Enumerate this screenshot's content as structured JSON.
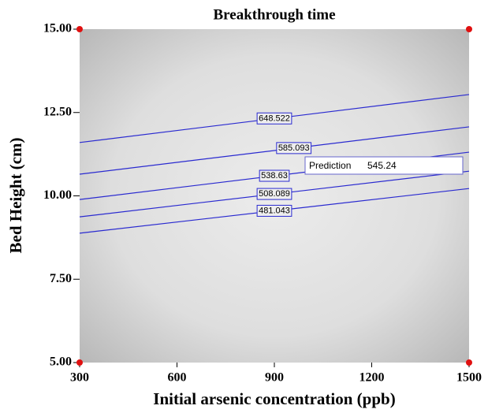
{
  "chart_data": {
    "type": "contour",
    "title": "Breakthrough time",
    "x_label": "Initial arsenic concentration (ppb)",
    "y_label": "Bed Height (cm)",
    "xlim": [
      300,
      1500
    ],
    "xticks": [
      300,
      600,
      900,
      1200,
      1500
    ],
    "ylim": [
      5,
      15
    ],
    "yticks": [
      {
        "value": 5,
        "label": "5.00"
      },
      {
        "value": 7.5,
        "label": "7.50"
      },
      {
        "value": 10,
        "label": "10.00"
      },
      {
        "value": 12.5,
        "label": "12.50"
      },
      {
        "value": 15,
        "label": "15.00"
      }
    ],
    "contour_color": "#2a2ad0",
    "contours": [
      {
        "level": 648.522,
        "x": [
          300,
          1500
        ],
        "y": [
          11.6,
          13.04
        ]
      },
      {
        "level": 585.093,
        "x": [
          300,
          1500
        ],
        "y": [
          10.65,
          12.07
        ]
      },
      {
        "level": 538.63,
        "x": [
          300,
          1500
        ],
        "y": [
          9.89,
          11.31
        ]
      },
      {
        "level": 508.089,
        "x": [
          300,
          1500
        ],
        "y": [
          9.37,
          10.74
        ]
      },
      {
        "level": 481.043,
        "x": [
          300,
          1500
        ],
        "y": [
          8.88,
          10.22
        ]
      }
    ],
    "design_points": {
      "color": "#e01010",
      "x": [
        300,
        300,
        1500,
        1500
      ],
      "y": [
        5,
        15,
        5,
        15
      ]
    },
    "prediction": {
      "label": "Prediction",
      "value": 545.24
    }
  }
}
